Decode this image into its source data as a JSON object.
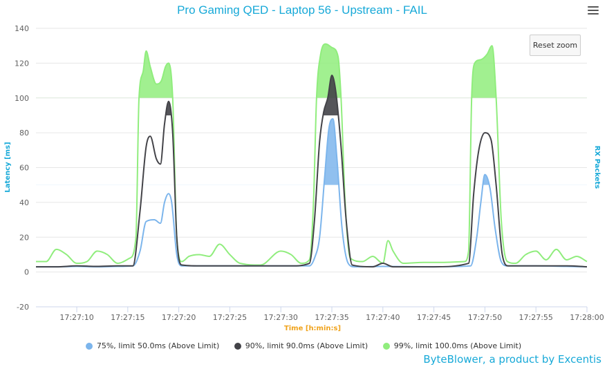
{
  "chart_data": {
    "type": "area",
    "title": "Pro Gaming QED - Laptop 56 - Upstream - FAIL",
    "ylabel": "Latency [ms]",
    "y2label": "RX Packets",
    "xlabel": "Time [h:min:s]",
    "ylim": [
      -20,
      140
    ],
    "yticks": [
      -20,
      0,
      20,
      40,
      60,
      80,
      100,
      120,
      140
    ],
    "xlim": [
      "17:27:06",
      "17:28:00"
    ],
    "xticks": [
      "17:27:10",
      "17:27:15",
      "17:27:20",
      "17:27:25",
      "17:27:30",
      "17:27:35",
      "17:27:40",
      "17:27:45",
      "17:27:50",
      "17:27:55",
      "17:28:00"
    ],
    "grid": true,
    "legend_position": "bottom",
    "series": [
      {
        "name": "75%, limit 50.0ms (Above Limit)",
        "color": "#7cb5ec",
        "limit": 50,
        "points": [
          [
            "17:27:06",
            3
          ],
          [
            "17:27:08",
            3
          ],
          [
            "17:27:10",
            3.2
          ],
          [
            "17:27:12",
            3
          ],
          [
            "17:27:14",
            3.2
          ],
          [
            "17:27:15.5",
            3.5
          ],
          [
            "17:27:16.2",
            12
          ],
          [
            "17:27:16.8",
            29
          ],
          [
            "17:27:17.6",
            30
          ],
          [
            "17:27:18.2",
            28
          ],
          [
            "17:27:18.6",
            40
          ],
          [
            "17:27:19",
            45
          ],
          [
            "17:27:19.3",
            40
          ],
          [
            "17:27:19.8",
            10
          ],
          [
            "17:27:20.3",
            3.5
          ],
          [
            "17:27:22",
            3.5
          ],
          [
            "17:27:25",
            3.5
          ],
          [
            "17:27:28",
            3.5
          ],
          [
            "17:27:31",
            3.5
          ],
          [
            "17:27:32.8",
            3.5
          ],
          [
            "17:27:33.3",
            8
          ],
          [
            "17:27:33.8",
            20
          ],
          [
            "17:27:34.3",
            55
          ],
          [
            "17:27:34.7",
            82
          ],
          [
            "17:27:35.1",
            88
          ],
          [
            "17:27:35.5",
            65
          ],
          [
            "17:27:36",
            25
          ],
          [
            "17:27:36.6",
            5
          ],
          [
            "17:27:37.2",
            3
          ],
          [
            "17:27:40",
            3.2
          ],
          [
            "17:27:45",
            3
          ],
          [
            "17:27:48.6",
            3.5
          ],
          [
            "17:27:49.2",
            20
          ],
          [
            "17:27:49.6",
            40
          ],
          [
            "17:27:50",
            56
          ],
          [
            "17:27:50.5",
            48
          ],
          [
            "17:27:51",
            25
          ],
          [
            "17:27:51.6",
            6
          ],
          [
            "17:27:52.2",
            3.5
          ],
          [
            "17:27:55",
            3.5
          ],
          [
            "17:27:58",
            3.2
          ],
          [
            "17:28:00",
            3
          ]
        ]
      },
      {
        "name": "90%, limit 90.0ms (Above Limit)",
        "color": "#434348",
        "limit": 90,
        "points": [
          [
            "17:27:06",
            3
          ],
          [
            "17:27:08",
            3
          ],
          [
            "17:27:10",
            3.5
          ],
          [
            "17:27:12",
            3.2
          ],
          [
            "17:27:14",
            3.5
          ],
          [
            "17:27:15.5",
            3.5
          ],
          [
            "17:27:16.2",
            35
          ],
          [
            "17:27:16.8",
            72
          ],
          [
            "17:27:17.2",
            78
          ],
          [
            "17:27:17.8",
            65
          ],
          [
            "17:27:18.2",
            62
          ],
          [
            "17:27:18.6",
            85
          ],
          [
            "17:27:19",
            98
          ],
          [
            "17:27:19.4",
            80
          ],
          [
            "17:27:19.8",
            20
          ],
          [
            "17:27:20.3",
            4
          ],
          [
            "17:27:22",
            3.5
          ],
          [
            "17:27:25",
            3.5
          ],
          [
            "17:27:28",
            3.5
          ],
          [
            "17:27:31",
            3.5
          ],
          [
            "17:27:32.8",
            5
          ],
          [
            "17:27:33.3",
            30
          ],
          [
            "17:27:33.8",
            75
          ],
          [
            "17:27:34.2",
            92
          ],
          [
            "17:27:34.6",
            100
          ],
          [
            "17:27:35",
            113
          ],
          [
            "17:27:35.4",
            103
          ],
          [
            "17:27:35.9",
            72
          ],
          [
            "17:27:36.4",
            30
          ],
          [
            "17:27:37",
            4
          ],
          [
            "17:27:39",
            3
          ],
          [
            "17:27:40",
            5
          ],
          [
            "17:27:41",
            3
          ],
          [
            "17:27:45",
            3
          ],
          [
            "17:27:48.4",
            5
          ],
          [
            "17:27:48.9",
            45
          ],
          [
            "17:27:49.4",
            70
          ],
          [
            "17:27:50",
            80
          ],
          [
            "17:27:50.6",
            76
          ],
          [
            "17:27:51.1",
            50
          ],
          [
            "17:27:51.7",
            10
          ],
          [
            "17:27:52.3",
            3.5
          ],
          [
            "17:27:55",
            3.5
          ],
          [
            "17:27:58",
            3.5
          ],
          [
            "17:28:00",
            3
          ]
        ]
      },
      {
        "name": "99%, limit 100.0ms (Above Limit)",
        "color": "#90ed7d",
        "limit": 100,
        "points": [
          [
            "17:27:06",
            6
          ],
          [
            "17:27:07",
            6
          ],
          [
            "17:27:08",
            13
          ],
          [
            "17:27:09",
            10
          ],
          [
            "17:27:10",
            5
          ],
          [
            "17:27:11",
            6
          ],
          [
            "17:27:12",
            12
          ],
          [
            "17:27:13",
            10
          ],
          [
            "17:27:14",
            5
          ],
          [
            "17:27:15.2",
            8
          ],
          [
            "17:27:15.8",
            20
          ],
          [
            "17:27:16.1",
            100
          ],
          [
            "17:27:16.5",
            115
          ],
          [
            "17:27:16.8",
            127
          ],
          [
            "17:27:17.2",
            118
          ],
          [
            "17:27:17.8",
            108
          ],
          [
            "17:27:18.3",
            110
          ],
          [
            "17:27:18.7",
            118
          ],
          [
            "17:27:19",
            120
          ],
          [
            "17:27:19.4",
            100
          ],
          [
            "17:27:19.8",
            20
          ],
          [
            "17:27:20.3",
            6
          ],
          [
            "17:27:21",
            9
          ],
          [
            "17:27:22",
            10
          ],
          [
            "17:27:23",
            9
          ],
          [
            "17:27:24",
            16
          ],
          [
            "17:27:25",
            10
          ],
          [
            "17:27:26",
            5
          ],
          [
            "17:27:28",
            4
          ],
          [
            "17:27:30",
            12
          ],
          [
            "17:27:31",
            10
          ],
          [
            "17:27:32",
            5
          ],
          [
            "17:27:32.8",
            7
          ],
          [
            "17:27:33.2",
            40
          ],
          [
            "17:27:33.5",
            100
          ],
          [
            "17:27:33.9",
            125
          ],
          [
            "17:27:34.4",
            131
          ],
          [
            "17:27:35",
            129
          ],
          [
            "17:27:35.6",
            124
          ],
          [
            "17:27:35.9",
            100
          ],
          [
            "17:27:36.3",
            40
          ],
          [
            "17:27:36.8",
            8
          ],
          [
            "17:27:38",
            6
          ],
          [
            "17:27:39",
            9
          ],
          [
            "17:27:40",
            5
          ],
          [
            "17:27:40.5",
            18
          ],
          [
            "17:27:41",
            12
          ],
          [
            "17:27:42",
            5
          ],
          [
            "17:27:44",
            5.5
          ],
          [
            "17:27:46",
            5.5
          ],
          [
            "17:27:48",
            6
          ],
          [
            "17:27:48.4",
            12
          ],
          [
            "17:27:48.7",
            100
          ],
          [
            "17:27:49",
            120
          ],
          [
            "17:27:49.6",
            122
          ],
          [
            "17:27:50.2",
            125
          ],
          [
            "17:27:50.7",
            130
          ],
          [
            "17:27:51.1",
            100
          ],
          [
            "17:27:51.6",
            30
          ],
          [
            "17:27:52.2",
            6
          ],
          [
            "17:27:53",
            5
          ],
          [
            "17:27:54",
            10
          ],
          [
            "17:27:55",
            12
          ],
          [
            "17:27:56",
            7
          ],
          [
            "17:27:57",
            13
          ],
          [
            "17:27:58",
            7
          ],
          [
            "17:27:59",
            9
          ],
          [
            "17:28:00",
            6
          ]
        ]
      }
    ]
  },
  "reset_zoom_label": "Reset zoom",
  "credits": "ByteBlower, a product by Excentis",
  "menu_icon": "hamburger-icon"
}
